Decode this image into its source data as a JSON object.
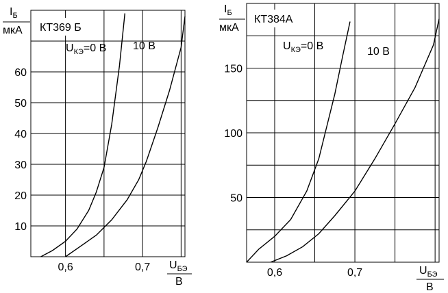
{
  "chart_data": [
    {
      "type": "line",
      "title": "КТ369 Б",
      "ylabel": {
        "symbol": "I",
        "sub": "Б",
        "unit": "мкА"
      },
      "xlabel": {
        "symbol": "U",
        "sub": "БЭ",
        "unit": "В"
      },
      "xticks": [
        "0,6",
        "0,7"
      ],
      "yticks": [
        "10",
        "20",
        "30",
        "40",
        "50",
        "60"
      ],
      "xlim": [
        0.555,
        0.755
      ],
      "ylim": [
        0,
        80
      ],
      "grid": true,
      "annotations": [
        {
          "label": "U",
          "sub": "КЭ",
          "suffix": "=0 В"
        },
        {
          "label": "10 В"
        }
      ],
      "series": [
        {
          "x": [
            0.568,
            0.583,
            0.6,
            0.615,
            0.63,
            0.64,
            0.65,
            0.66,
            0.67,
            0.677
          ],
          "y": [
            0,
            2,
            5,
            9,
            15,
            21,
            29,
            43,
            62,
            79
          ]
        },
        {
          "x": [
            0.6,
            0.62,
            0.64,
            0.66,
            0.68,
            0.695,
            0.705,
            0.72,
            0.735,
            0.75,
            0.76
          ],
          "y": [
            0,
            3.5,
            7,
            12,
            18.5,
            25,
            31,
            42,
            54,
            68,
            78
          ]
        }
      ]
    },
    {
      "type": "line",
      "title": "КТ384А",
      "ylabel": {
        "symbol": "I",
        "sub": "Б",
        "unit": "мкА"
      },
      "xlabel": {
        "symbol": "U",
        "sub": "БЭ",
        "unit": "В"
      },
      "xticks": [
        "0,6",
        "0,7"
      ],
      "yticks": [
        "50",
        "100",
        "150"
      ],
      "xlim": [
        0.565,
        0.805
      ],
      "ylim": [
        0,
        200
      ],
      "grid": true,
      "annotations": [
        {
          "label": "U",
          "sub": "КЭ",
          "suffix": "=0 В"
        },
        {
          "label": "10 В"
        }
      ],
      "series": [
        {
          "x": [
            0.562,
            0.58,
            0.6,
            0.62,
            0.64,
            0.655,
            0.665,
            0.675,
            0.685,
            0.694
          ],
          "y": [
            0,
            10,
            20,
            33,
            55,
            80,
            105,
            130,
            160,
            186
          ]
        },
        {
          "x": [
            0.595,
            0.615,
            0.635,
            0.655,
            0.675,
            0.7,
            0.725,
            0.75,
            0.775,
            0.798,
            0.81
          ],
          "y": [
            0,
            5,
            12,
            22,
            36,
            55,
            80,
            107,
            135,
            168,
            188
          ]
        }
      ]
    }
  ]
}
